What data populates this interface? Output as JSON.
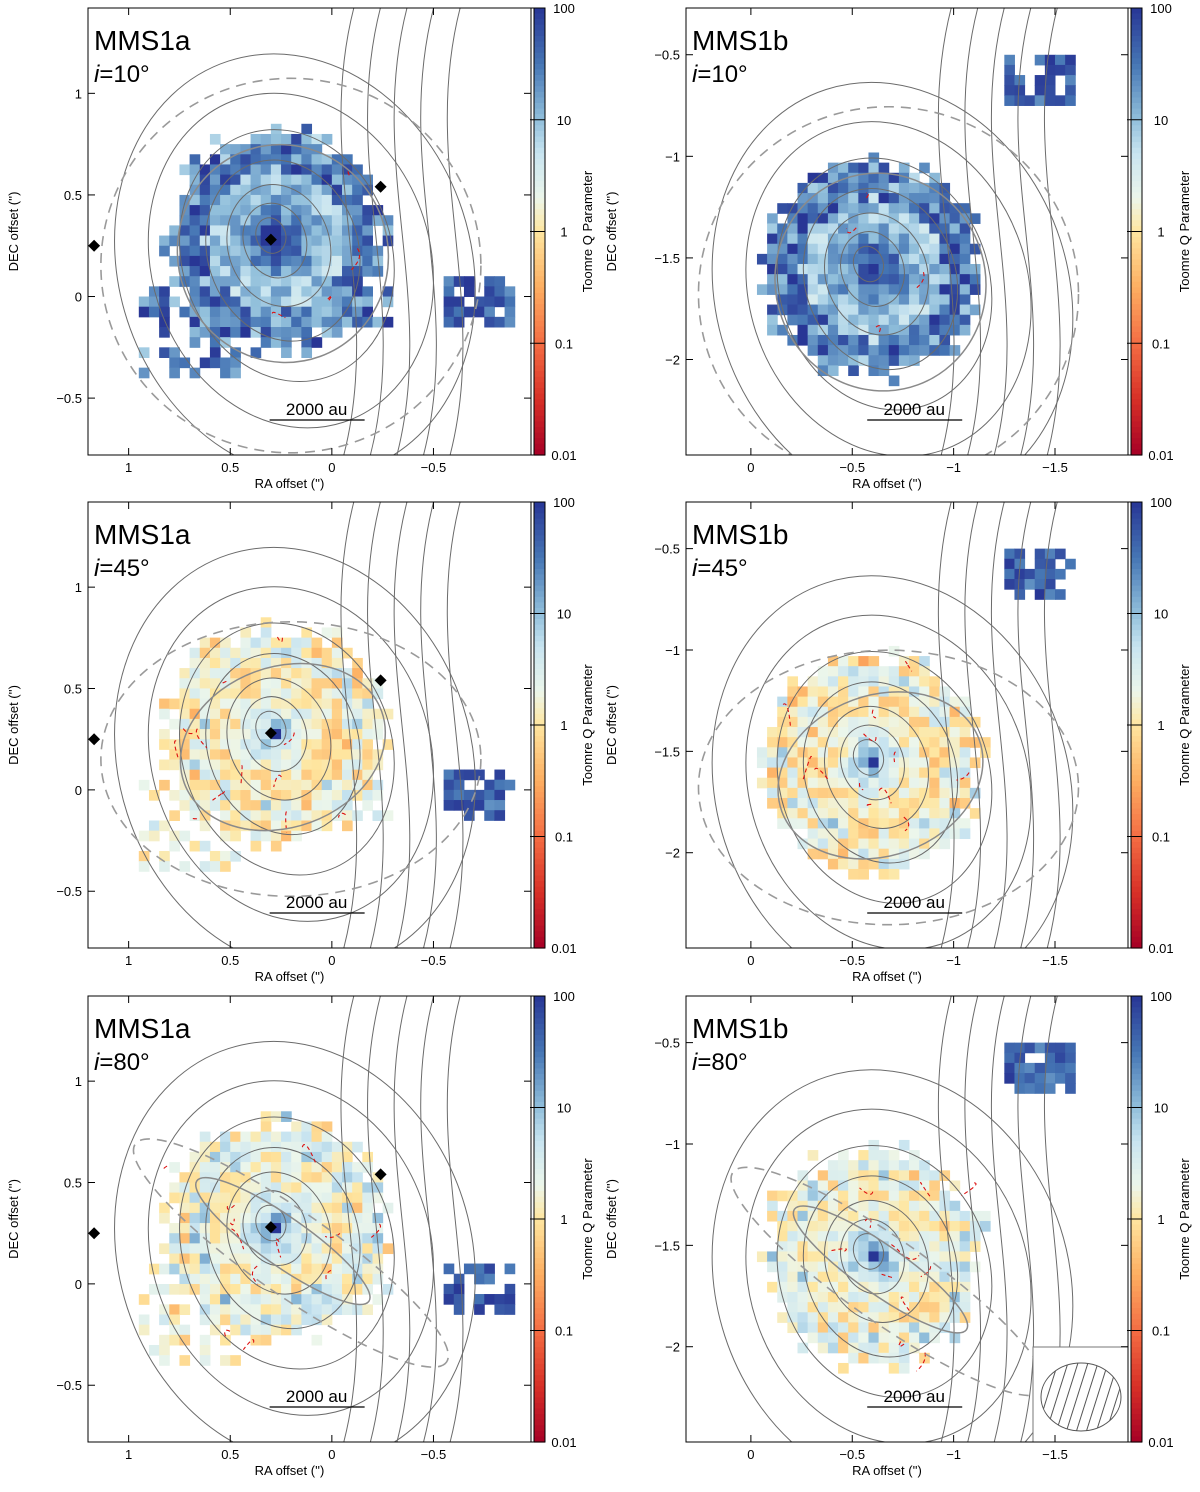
{
  "figure": {
    "scale_bar_label": "2000 au",
    "colorbar_label": "Toomre Q Parameter",
    "colorbar_ticks": [
      0.01,
      0.1,
      1,
      10,
      100
    ],
    "colorbar_tick_labels": [
      "0.01",
      "0.1",
      "1",
      "10",
      "100"
    ],
    "inclination_prefix": "i",
    "panels": [
      {
        "source": "MMS1a",
        "inclination": "=10°",
        "inc_deg": 10
      },
      {
        "source": "MMS1b",
        "inclination": "=10°",
        "inc_deg": 10
      },
      {
        "source": "MMS1a",
        "inclination": "=45°",
        "inc_deg": 45
      },
      {
        "source": "MMS1b",
        "inclination": "=45°",
        "inc_deg": 45
      },
      {
        "source": "MMS1a",
        "inclination": "=80°",
        "inc_deg": 80
      },
      {
        "source": "MMS1b",
        "inclination": "=80°",
        "inc_deg": 80
      }
    ]
  },
  "chart_data": [
    {
      "type": "heatmap",
      "source": "MMS1a",
      "title": "MMS1a i=10°, 45°, 80°",
      "xlabel": "RA offset ('')",
      "ylabel": "DEC offset ('')",
      "xlim": [
        1.2,
        -0.98
      ],
      "ylim": [
        -0.78,
        1.42
      ],
      "xticks": [
        1,
        0.5,
        0,
        -0.5
      ],
      "xtick_labels": [
        "1",
        "0.5",
        "0",
        "−0.5"
      ],
      "yticks": [
        -0.5,
        0,
        0.5,
        1
      ],
      "ytick_labels": [
        "−0.5",
        "0",
        "0.5",
        "1"
      ],
      "colorbar": {
        "label": "Toomre Q Parameter",
        "range": [
          0.01,
          100
        ],
        "scale": "log"
      },
      "markers": [
        {
          "x": 0.3,
          "y": 0.28
        },
        {
          "x": -0.24,
          "y": 0.54
        },
        {
          "x": 1.17,
          "y": 0.25
        }
      ],
      "core_center": {
        "x": 0.3,
        "y": 0.3
      },
      "scale_bar": "2000 au"
    },
    {
      "type": "heatmap",
      "source": "MMS1b",
      "title": "MMS1b i=10°, 45°, 80°",
      "xlabel": "RA offset ('')",
      "ylabel": "DEC offset ('')",
      "xlim": [
        0.32,
        -1.86
      ],
      "ylim": [
        -2.47,
        -0.27
      ],
      "xticks": [
        0,
        -0.5,
        -1,
        -1.5
      ],
      "xtick_labels": [
        "0",
        "−0.5",
        "−1",
        "−1.5"
      ],
      "yticks": [
        -2,
        -1.5,
        -1,
        -0.5
      ],
      "ytick_labels": [
        "−2",
        "−1.5",
        "−1",
        "−0.5"
      ],
      "colorbar": {
        "label": "Toomre Q Parameter",
        "range": [
          0.01,
          100
        ],
        "scale": "log"
      },
      "markers": [],
      "core_center": {
        "x": -0.58,
        "y": -1.53
      },
      "scale_bar": "2000 au"
    }
  ]
}
